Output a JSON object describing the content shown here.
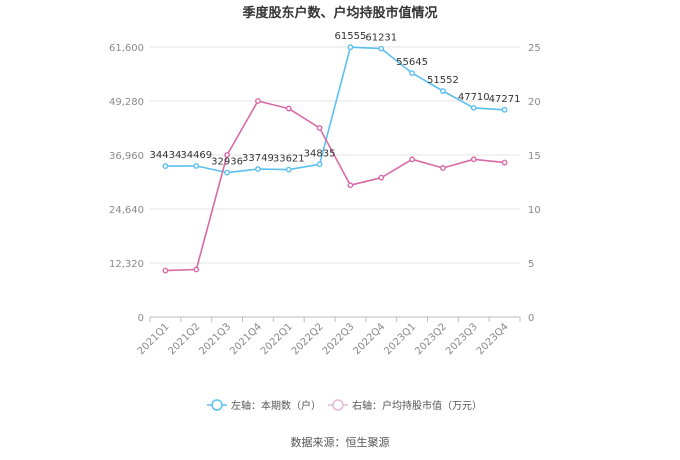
{
  "chart_data": {
    "type": "line",
    "title": "季度股东户数、户均持股市值情况",
    "categories": [
      "2021Q1",
      "2021Q2",
      "2021Q3",
      "2021Q4",
      "2022Q1",
      "2022Q2",
      "2022Q3",
      "2022Q4",
      "2023Q1",
      "2023Q2",
      "2023Q3",
      "2023Q4"
    ],
    "left_axis": {
      "ticks": [
        "0",
        "12,320",
        "24,640",
        "36,960",
        "49,280",
        "61,600"
      ],
      "range": [
        0,
        61600
      ]
    },
    "right_axis": {
      "ticks": [
        "0",
        "5",
        "10",
        "15",
        "20",
        "25"
      ],
      "range": [
        0,
        25
      ]
    },
    "series": [
      {
        "name": "左轴：本期数（户）",
        "axis": "left",
        "color": "#5bc0f0",
        "values": [
          34434,
          34469,
          32936,
          33749,
          33621,
          34835,
          61555,
          61231,
          55645,
          51552,
          47710,
          47271
        ],
        "labels": [
          "34434",
          "34469",
          "32936",
          "33749",
          "33621",
          "34835",
          "61555",
          "61231",
          "55645",
          "51552",
          "47710",
          "47271"
        ]
      },
      {
        "name": "右轴：户均持股市值（万元）",
        "axis": "right",
        "color": "#d96aa7",
        "values": [
          4.3,
          4.4,
          15.0,
          20.0,
          19.3,
          17.5,
          12.2,
          12.9,
          14.6,
          13.8,
          14.6,
          14.3
        ]
      }
    ],
    "grid": true,
    "legend": "bottom"
  },
  "source": "数据来源：恒生聚源"
}
